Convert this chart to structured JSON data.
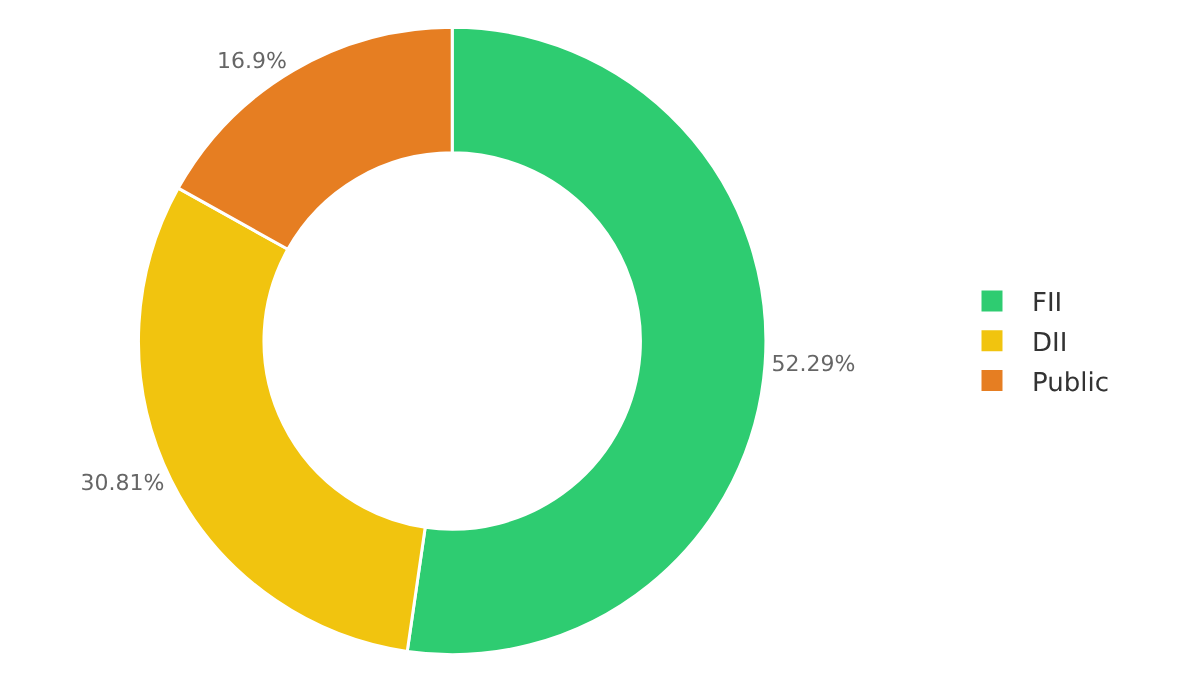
{
  "chart_data": {
    "type": "donut",
    "categories": [
      "FII",
      "DII",
      "Public"
    ],
    "values": [
      52.29,
      30.81,
      16.9
    ],
    "colors": [
      "#2ecc71",
      "#f1c40f",
      "#e67e22"
    ],
    "value_labels": [
      "52.29%",
      "30.81%",
      "16.9%"
    ],
    "legend": "right"
  }
}
